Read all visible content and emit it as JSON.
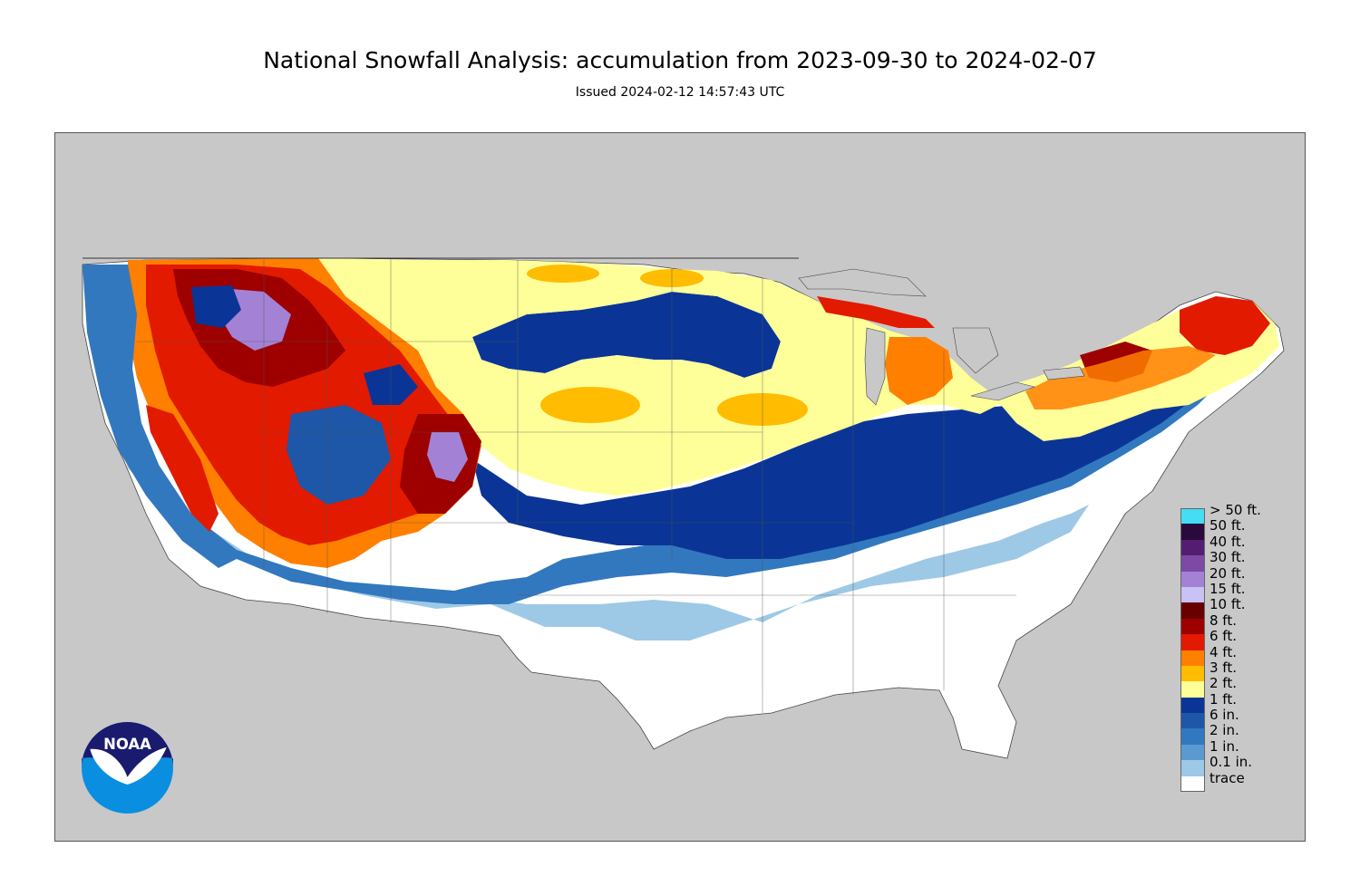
{
  "title": "National Snowfall Analysis: accumulation from 2023-09-30 to 2024-02-07",
  "subtitle": "Issued 2024-02-12 14:57:43 UTC",
  "logo_text": "NOAA",
  "legend": [
    {
      "label": "> 50 ft.",
      "color": "#44ddf4"
    },
    {
      "label": "50 ft.",
      "color": "#2a0a3c"
    },
    {
      "label": "40 ft.",
      "color": "#551d72"
    },
    {
      "label": "30 ft.",
      "color": "#7c4aa4"
    },
    {
      "label": "20 ft.",
      "color": "#a382d6"
    },
    {
      "label": "15 ft.",
      "color": "#c9c2f4"
    },
    {
      "label": "10 ft.",
      "color": "#680000"
    },
    {
      "label": "8 ft.",
      "color": "#9e0000"
    },
    {
      "label": "6 ft.",
      "color": "#e21a00"
    },
    {
      "label": "4 ft.",
      "color": "#ff7f00"
    },
    {
      "label": "3 ft.",
      "color": "#ffbc00"
    },
    {
      "label": "2 ft.",
      "color": "#ffff99"
    },
    {
      "label": "1 ft.",
      "color": "#0a3596"
    },
    {
      "label": "6 in.",
      "color": "#1e56a8"
    },
    {
      "label": "2 in.",
      "color": "#3278be"
    },
    {
      "label": "1 in.",
      "color": "#5a9ad0"
    },
    {
      "label": "0.1 in.",
      "color": "#9dc9e6"
    },
    {
      "label": "trace",
      "color": "#ffffff"
    }
  ],
  "colors": {
    "background_land": "#c8c8c8",
    "no_snow": "#ffffff",
    "border_lines": "#555555",
    "noaa_navy": "#1a1a6e",
    "noaa_blue": "#0a8ee0"
  }
}
